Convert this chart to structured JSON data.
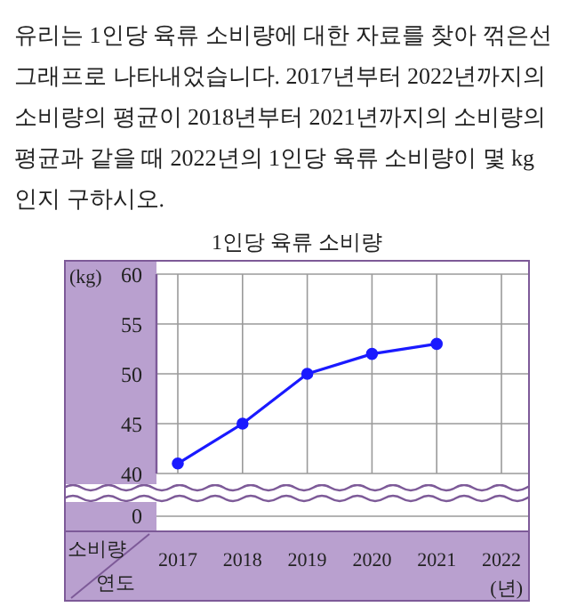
{
  "chart_data": {
    "type": "line",
    "title": "1인당 육류 소비량",
    "annotations": [
      "유리는 1인당 육류 소비량에 대한 자료를 찾아 꺾은선그래프로 나타내었습니다. 2017년부터 2022년까지의 소비량의 평균이 2018년부터 2021년까지의 소비량의 평균과 같을 때 2022년의 1인당 육류 소비량이 몇 kg인지 구하시오.",
      "0",
      "소비량",
      "연도"
    ],
    "ylabel": "(kg)",
    "xlabel": "(년)",
    "categories": [
      "2017",
      "2018",
      "2019",
      "2020",
      "2021",
      "2022"
    ],
    "series": [
      {
        "color": "#1a1aff",
        "values": [
          41,
          45,
          50,
          52,
          53,
          null
        ]
      }
    ],
    "ylim": [
      40,
      60
    ],
    "yticks": [
      40,
      45,
      50,
      55,
      60
    ],
    "grid": true,
    "marker": "circle"
  }
}
